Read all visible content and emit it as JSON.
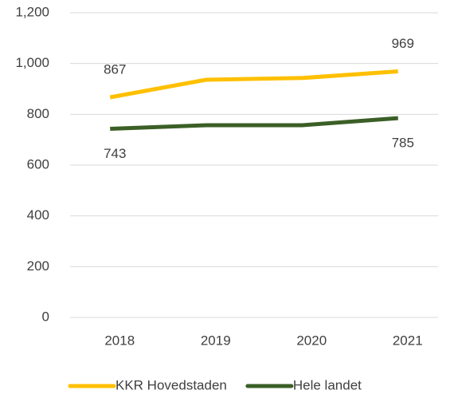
{
  "chart_data": {
    "type": "line",
    "categories": [
      "2018",
      "2019",
      "2020",
      "2021"
    ],
    "series": [
      {
        "name": "KKR Hovedstaden",
        "color": "#ffc000",
        "values": [
          867,
          936,
          943,
          969
        ],
        "value_labels": [
          "867",
          null,
          null,
          "969"
        ],
        "label_position": "above"
      },
      {
        "name": "Hele landet",
        "color": "#3b5f26",
        "values": [
          743,
          757,
          757,
          785
        ],
        "value_labels": [
          "743",
          null,
          null,
          "785"
        ],
        "label_position": "below"
      }
    ],
    "ylim": [
      0,
      1200
    ],
    "yticks": [
      0,
      200,
      400,
      600,
      800,
      {
        "value": 1000,
        "label": "1,000"
      },
      {
        "value": 1200,
        "label": "1,200"
      }
    ],
    "grid": true,
    "legend": "bottom"
  }
}
